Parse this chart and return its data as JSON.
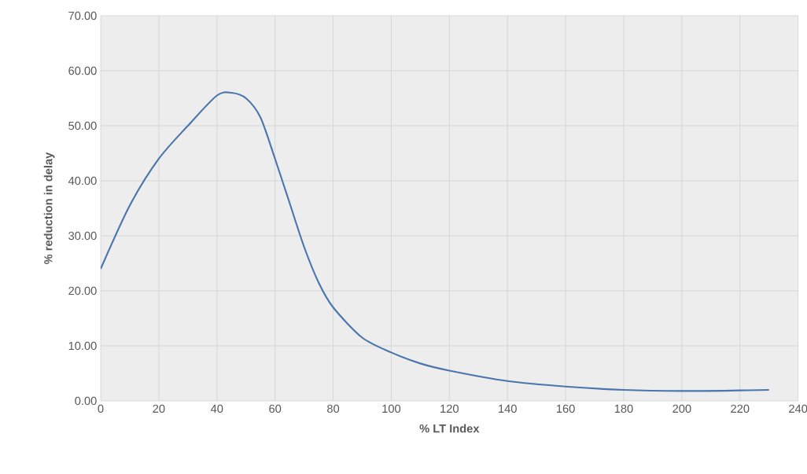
{
  "chart_data": {
    "type": "line",
    "xlabel": "% LT Index",
    "ylabel": "% reduction in delay",
    "x": [
      0,
      10,
      20,
      30,
      40,
      45,
      50,
      55,
      60,
      65,
      70,
      75,
      80,
      90,
      100,
      110,
      120,
      140,
      160,
      180,
      200,
      220,
      230
    ],
    "series": [
      {
        "color": "#4a76ad",
        "values": [
          24,
          35.5,
          44,
          50,
          55.5,
          56,
          55,
          51.5,
          44,
          36,
          28,
          21.5,
          17,
          11.5,
          8.8,
          6.8,
          5.5,
          3.6,
          2.6,
          2.0,
          1.8,
          1.9,
          2.0
        ]
      }
    ],
    "xlim": [
      0,
      240
    ],
    "ylim": [
      0,
      70
    ],
    "xticks": [
      0,
      20,
      40,
      60,
      80,
      100,
      120,
      140,
      160,
      180,
      200,
      220,
      240
    ],
    "yticks": [
      {
        "value": 0,
        "label": "0.00"
      },
      {
        "value": 10,
        "label": "10.00"
      },
      {
        "value": 20,
        "label": "20.00"
      },
      {
        "value": 30,
        "label": "30.00"
      },
      {
        "value": 40,
        "label": "40.00"
      },
      {
        "value": 50,
        "label": "50.00"
      },
      {
        "value": 60,
        "label": "60.00"
      },
      {
        "value": 70,
        "label": "70.00"
      }
    ],
    "grid": true,
    "marker": "none",
    "line_style": "solid"
  }
}
